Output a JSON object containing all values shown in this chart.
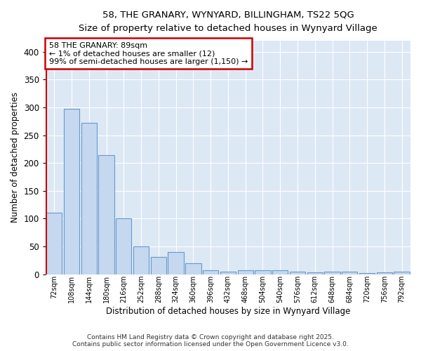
{
  "title1": "58, THE GRANARY, WYNYARD, BILLINGHAM, TS22 5QG",
  "title2": "Size of property relative to detached houses in Wynyard Village",
  "xlabel": "Distribution of detached houses by size in Wynyard Village",
  "ylabel": "Number of detached properties",
  "bar_color": "#c5d8f0",
  "bar_edge_color": "#6699cc",
  "bg_color": "#dde8f5",
  "annotation_text": "58 THE GRANARY: 89sqm\n← 1% of detached houses are smaller (12)\n99% of semi-detached houses are larger (1,150) →",
  "annotation_box_facecolor": "#ffffff",
  "annotation_border_color": "#cc0000",
  "categories": [
    "72sqm",
    "108sqm",
    "144sqm",
    "180sqm",
    "216sqm",
    "252sqm",
    "288sqm",
    "324sqm",
    "360sqm",
    "396sqm",
    "432sqm",
    "468sqm",
    "504sqm",
    "540sqm",
    "576sqm",
    "612sqm",
    "648sqm",
    "684sqm",
    "720sqm",
    "756sqm",
    "792sqm"
  ],
  "values": [
    110,
    298,
    272,
    214,
    101,
    50,
    31,
    40,
    20,
    7,
    4,
    7,
    7,
    7,
    4,
    3,
    5,
    4,
    2,
    3,
    4
  ],
  "ylim": [
    0,
    420
  ],
  "yticks": [
    0,
    50,
    100,
    150,
    200,
    250,
    300,
    350,
    400
  ],
  "footer_text1": "Contains HM Land Registry data © Crown copyright and database right 2025.",
  "footer_text2": "Contains public sector information licensed under the Open Government Licence v3.0."
}
